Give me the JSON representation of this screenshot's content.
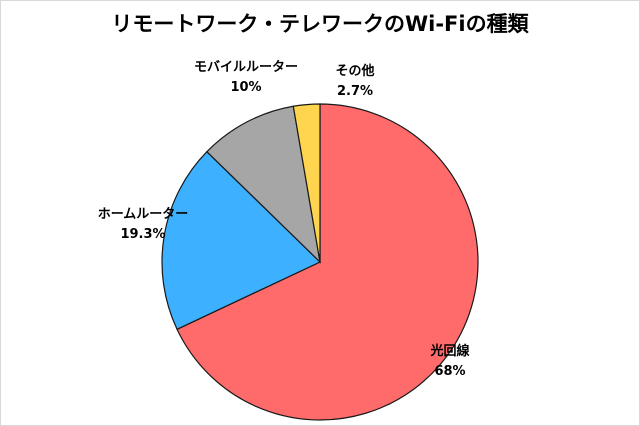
{
  "chart_data": {
    "type": "pie",
    "title": "リモートワーク・テレワークのWi-Fiの種類",
    "start_angle_deg": 0,
    "direction": "clockwise",
    "slices": [
      {
        "name": "光回線",
        "value": 68,
        "value_label": "68%",
        "color": "#ff6b6b"
      },
      {
        "name": "ホームルーター",
        "value": 19.3,
        "value_label": "19.3%",
        "color": "#3db0ff"
      },
      {
        "name": "モバイルルーター",
        "value": 10,
        "value_label": "10%",
        "color": "#a6a6a6"
      },
      {
        "name": "その他",
        "value": 2.7,
        "value_label": "2.7%",
        "color": "#ffd54f"
      }
    ]
  }
}
